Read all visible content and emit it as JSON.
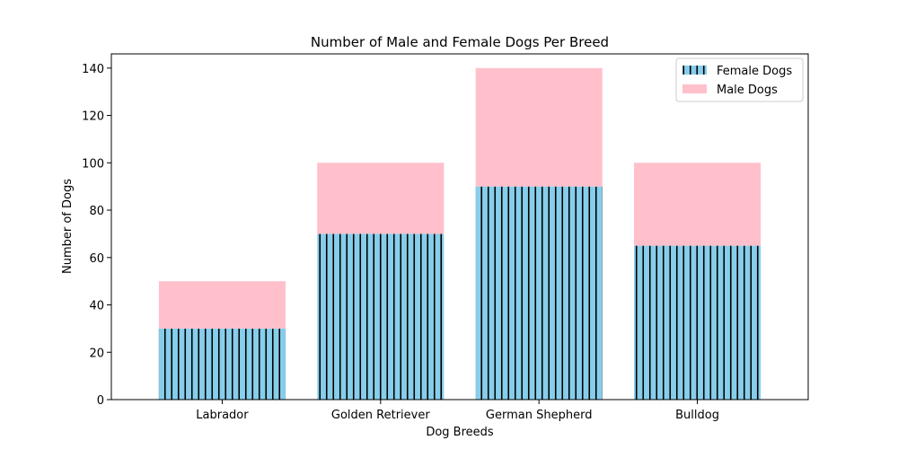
{
  "chart_data": {
    "type": "bar",
    "stacked": true,
    "title": "Number of Male and Female Dogs Per Breed",
    "xlabel": "Dog Breeds",
    "ylabel": "Number of Dogs",
    "categories": [
      "Labrador",
      "Golden Retriever",
      "German Shepherd",
      "Bulldog"
    ],
    "series": [
      {
        "name": "Female Dogs",
        "values": [
          30,
          70,
          90,
          65
        ],
        "color": "#87CEEB",
        "hatch": "vertical-lines",
        "hatch_color": "#000000"
      },
      {
        "name": "Male Dogs",
        "values": [
          20,
          30,
          50,
          35
        ],
        "color": "#FFC0CB"
      }
    ],
    "ylim": [
      0,
      146
    ],
    "yticks": [
      0,
      20,
      40,
      60,
      80,
      100,
      120,
      140
    ],
    "grid": false,
    "legend_position": "top-right"
  }
}
